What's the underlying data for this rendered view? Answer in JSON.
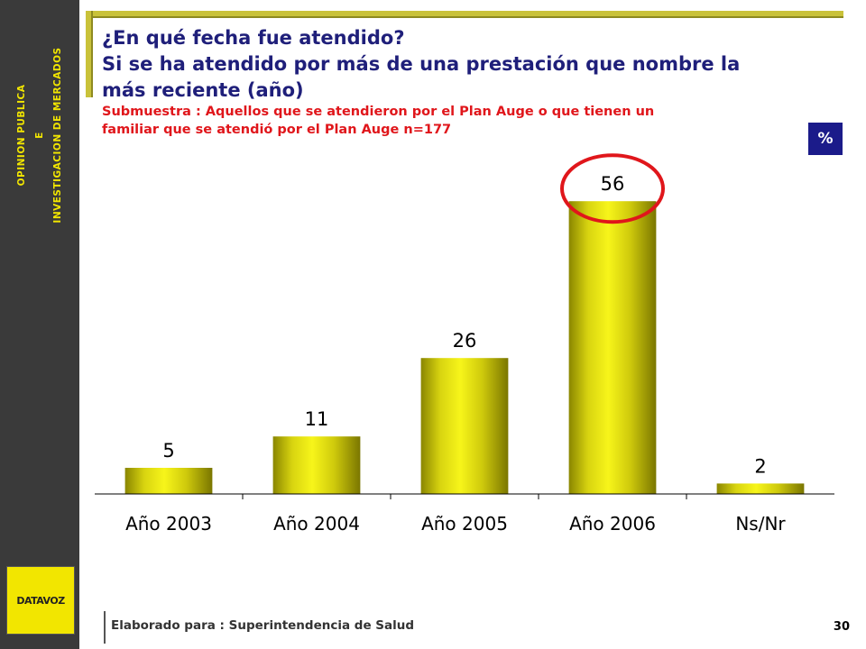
{
  "sidebar": {
    "line1": "OPINION PUBLICA",
    "line2": "E",
    "line3": "INVESTIGACION DE MERCADOS",
    "logo_text": "DATAVOZ"
  },
  "header": {
    "title_line1": "¿En qué fecha fue atendido?",
    "title_line2": "Si se ha atendido por más de una prestación que nombre la",
    "title_line3": "más reciente (año)",
    "subtitle_line1": "Submuestra : Aquellos que se atendieron por el Plan Auge o que tienen un",
    "subtitle_line2": "familiar que se atendió por el Plan Auge n=177",
    "unit_badge": "%"
  },
  "chart_data": {
    "type": "bar",
    "categories": [
      "Año 2003",
      "Año 2004",
      "Año 2005",
      "Año 2006",
      "Ns/Nr"
    ],
    "values": [
      5,
      11,
      26,
      56,
      2
    ],
    "title": "",
    "xlabel": "",
    "ylabel": "",
    "ylim": [
      0,
      60
    ],
    "grid": false,
    "highlight_index": 3,
    "colors": {
      "bar_light": "#f7f51a",
      "bar_dark": "#7a7600",
      "highlight": "#e0161b"
    }
  },
  "footer": {
    "text": "Elaborado para : Superintendencia de Salud",
    "page_number": "30"
  }
}
